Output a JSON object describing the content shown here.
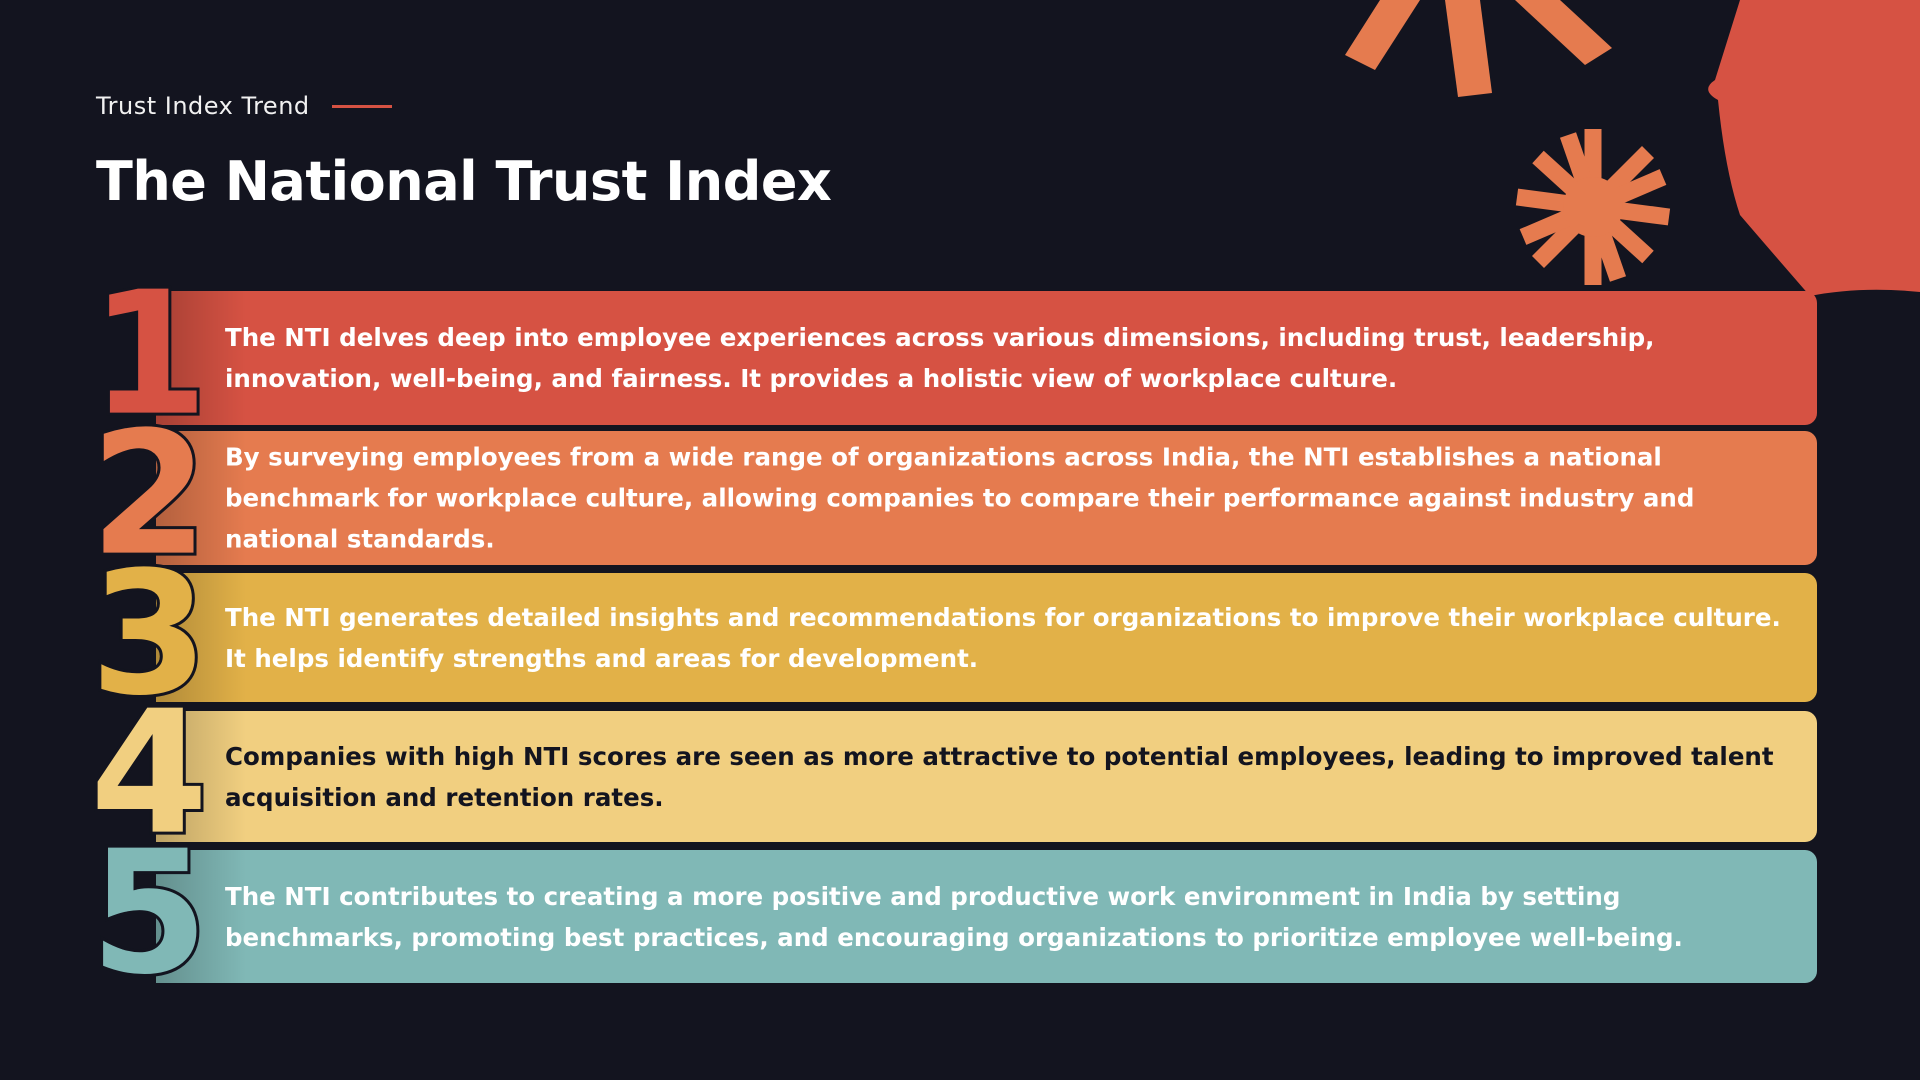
{
  "header": {
    "eyebrow": "Trust Index Trend",
    "title": "The National Trust Index"
  },
  "items": [
    {
      "number": "1",
      "text": "The NTI delves deep into employee experiences across various dimensions, including trust, leadership, innovation, well-being, and fairness. It provides a holistic view of workplace culture."
    },
    {
      "number": "2",
      "text": "By surveying employees from a wide range of organizations across India, the NTI establishes a national benchmark for workplace culture, allowing companies to compare their performance against industry and national standards."
    },
    {
      "number": "3",
      "text": "The NTI generates detailed insights and recommendations for organizations to improve their workplace culture. It helps identify strengths and areas for development."
    },
    {
      "number": "4",
      "text": "Companies with high NTI scores are seen as more attractive to potential employees, leading to improved talent acquisition and retention rates."
    },
    {
      "number": "5",
      "text": "The NTI contributes to creating a more positive and productive work environment in India by setting benchmarks, promoting best practices, and encouraging organizations to prioritize employee well-being."
    }
  ]
}
